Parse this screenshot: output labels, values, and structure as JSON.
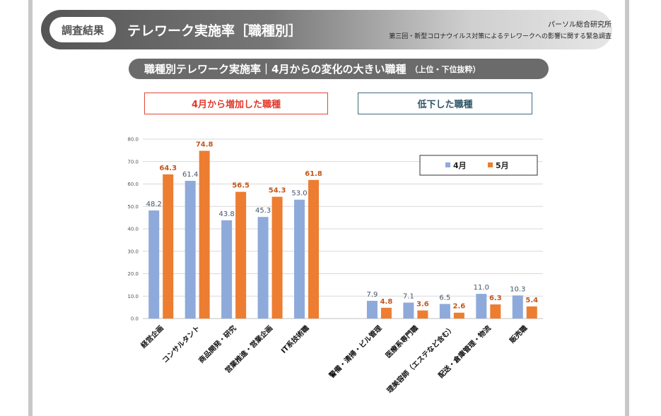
{
  "header": {
    "tag": "調査結果",
    "title": "テレワーク実施率［職種別］",
    "organization": "パーソル総合研究所",
    "survey": "第三回・新型コロナウイルス対策によるテレワークへの影響に関する緊急調査"
  },
  "subtitle": {
    "main": "職種別テレワーク実施率｜4月からの変化の大きい職種",
    "sub": "（上位・下位抜粋）"
  },
  "group_labels": {
    "increase": "4月から増加した職種",
    "decrease": "低下した職種"
  },
  "colors": {
    "april": "#8eaadb",
    "may": "#ed7d31",
    "grid": "#d9d9d9",
    "axis": "#bfbfbf"
  },
  "chart_data": {
    "type": "bar",
    "title": "",
    "xlabel": "",
    "ylabel": "",
    "ylim": [
      0,
      80
    ],
    "yticks": [
      "0.0",
      "10.0",
      "20.0",
      "30.0",
      "40.0",
      "50.0",
      "60.0",
      "70.0",
      "80.0"
    ],
    "grid": true,
    "legend_position": "top-right",
    "categories": [
      "経営企画",
      "コンサルタント",
      "商品開発・研究",
      "営業推進・営業企画",
      "IT系技術職",
      "",
      "警備・清掃・ビル管理",
      "医療系専門職",
      "理美容師（エステなど含む）",
      "配送・倉庫管理・物流",
      "販売職"
    ],
    "series": [
      {
        "name": "4月",
        "values": [
          48.2,
          61.4,
          43.8,
          45.3,
          53.0,
          null,
          7.9,
          7.1,
          6.5,
          11.0,
          10.3
        ],
        "labels": [
          "48.2",
          "61.4",
          "43.8",
          "45.3",
          "53.0",
          "",
          "7.9",
          "7.1",
          "6.5",
          "11.0",
          "10.3"
        ]
      },
      {
        "name": "5月",
        "values": [
          64.3,
          74.8,
          56.5,
          54.3,
          61.8,
          null,
          4.8,
          3.6,
          2.6,
          6.3,
          5.4
        ],
        "labels": [
          "64.3",
          "74.8",
          "56.5",
          "54.3",
          "61.8",
          "",
          "4.8",
          "3.6",
          "2.6",
          "6.3",
          "5.4"
        ]
      }
    ]
  }
}
